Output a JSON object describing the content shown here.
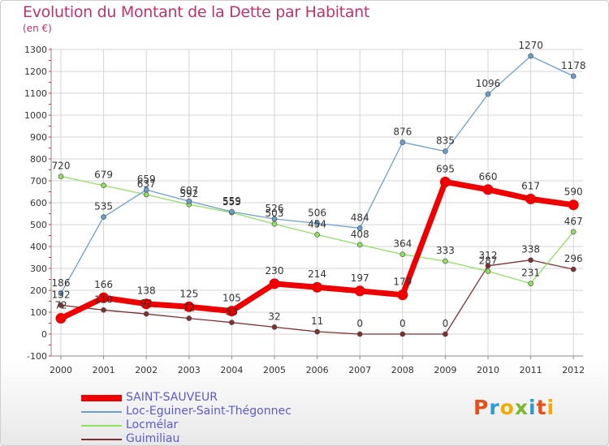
{
  "title": "Evolution du Montant de la Dette par Habitant",
  "subtitle": "(en €)",
  "logo": {
    "letters": [
      "P",
      "r",
      "o",
      "x",
      "i",
      "t",
      "i"
    ],
    "colors": [
      "#e94e1b",
      "#2e9ad6",
      "#f2a900",
      "#7cb82f",
      "#2e9ad6",
      "#e94e1b",
      "#f2a900"
    ]
  },
  "chart_data": {
    "type": "line",
    "x": [
      "2000",
      "2001",
      "2002",
      "2003",
      "2004",
      "2005",
      "2006",
      "2007",
      "2008",
      "2009",
      "2010",
      "2011",
      "2012"
    ],
    "ylim": [
      -100,
      1300
    ],
    "yticks": [
      "-100",
      "0",
      "100",
      "200",
      "300",
      "400",
      "500",
      "600",
      "700",
      "800",
      "900",
      "1000",
      "1100",
      "1200",
      "1300"
    ],
    "grid": true,
    "legend_position": "bottom-left",
    "series": [
      {
        "name": "SAINT-SAUVEUR",
        "color": "#ee0000",
        "values": [
          72,
          166,
          138,
          125,
          105,
          230,
          214,
          197,
          179,
          695,
          660,
          617,
          590
        ],
        "labels": [
          "72",
          "166",
          "138",
          "125",
          "105",
          "230",
          "214",
          "197",
          "179",
          "695",
          "660",
          "617",
          "590"
        ]
      },
      {
        "name": "Loc-Eguiner-Saint-Thégonnec",
        "color": "#6aa0d0",
        "values": [
          186,
          535,
          659,
          607,
          559,
          526,
          506,
          484,
          876,
          835,
          1096,
          1270,
          1178
        ],
        "labels": [
          "186",
          "535",
          "659",
          "607",
          "559",
          "526",
          "506",
          "484",
          "876",
          "835",
          "1096",
          "1270",
          "1178"
        ]
      },
      {
        "name": "Locmélar",
        "color": "#90e060",
        "values": [
          720,
          679,
          637,
          592,
          555,
          503,
          454,
          408,
          364,
          333,
          287,
          231,
          467
        ],
        "labels": [
          "720",
          "679",
          "637",
          "592",
          "555",
          "503",
          "454",
          "408",
          "364",
          "333",
          "287",
          "231",
          "467"
        ]
      },
      {
        "name": "Guimiliau",
        "color": "#803030",
        "values": [
          132,
          110,
          92,
          72,
          53,
          32,
          11,
          0,
          0,
          0,
          312,
          338,
          296
        ],
        "labels": [
          "132",
          "110",
          "92",
          "72",
          "53",
          "32",
          "11",
          "0",
          "0",
          "0",
          "312",
          "338",
          "296"
        ]
      }
    ]
  }
}
